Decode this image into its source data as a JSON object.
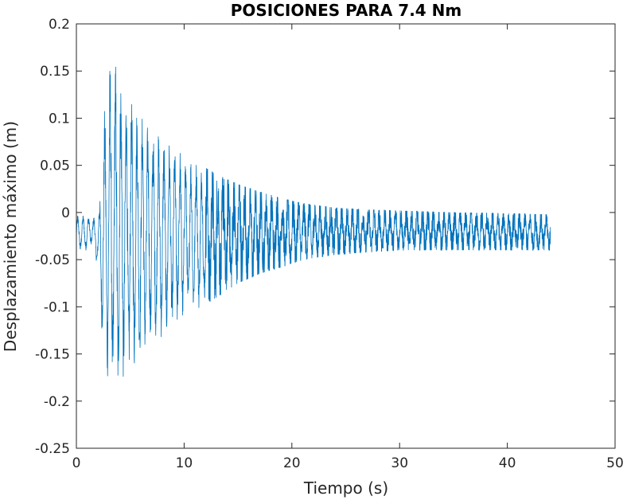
{
  "chart_data": {
    "type": "line",
    "title": "POSICIONES PARA 7.4 Nm",
    "xlabel": "Tiempo (s)",
    "ylabel": "Desplazamiento máximo (m)",
    "xlim": [
      0,
      50
    ],
    "ylim": [
      -0.25,
      0.2
    ],
    "xticks": [
      0,
      10,
      20,
      30,
      40,
      50
    ],
    "xtick_labels": [
      "0",
      "10",
      "20",
      "30",
      "40",
      "50"
    ],
    "yticks": [
      -0.25,
      -0.2,
      -0.15,
      -0.1,
      -0.05,
      0,
      0.05,
      0.1,
      0.15,
      0.2
    ],
    "ytick_labels": [
      "-0.25",
      "-0.2",
      "-0.15",
      "-0.1",
      "-0.05",
      "0",
      "0.05",
      "0.1",
      "0.15",
      "0.2"
    ],
    "grid": false,
    "line_color": "#0072BD",
    "series": [
      {
        "t_end": 44.0,
        "envelope": {
          "t": [
            0,
            0.5,
            1.0,
            1.5,
            2.0,
            2.3,
            2.8,
            3.2,
            3.6,
            4.5,
            5.5,
            7.0,
            9.0,
            11.0,
            13.0,
            15.0,
            17.0,
            19.0,
            21.0,
            24.0,
            27.0,
            30.0,
            35.0,
            40.0,
            44.0
          ],
          "upper": [
            -0.002,
            -0.002,
            -0.003,
            -0.002,
            -0.01,
            0.05,
            0.14,
            0.167,
            0.165,
            0.13,
            0.115,
            0.09,
            0.072,
            0.055,
            0.04,
            0.03,
            0.022,
            0.015,
            0.01,
            0.005,
            0.003,
            0.002,
            0.0,
            -0.001,
            -0.002
          ],
          "lower": [
            -0.042,
            -0.042,
            -0.04,
            -0.035,
            -0.06,
            -0.12,
            -0.17,
            -0.212,
            -0.2,
            -0.18,
            -0.165,
            -0.14,
            -0.125,
            -0.105,
            -0.09,
            -0.075,
            -0.065,
            -0.058,
            -0.05,
            -0.045,
            -0.042,
            -0.04,
            -0.04,
            -0.04,
            -0.04
          ]
        }
      }
    ]
  }
}
